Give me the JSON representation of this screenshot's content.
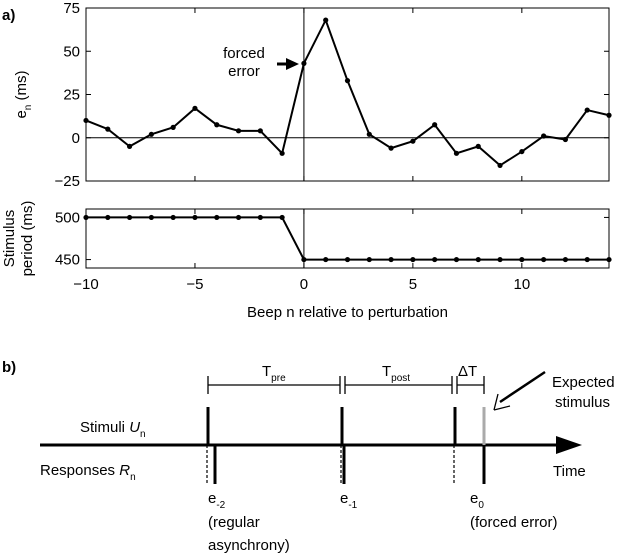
{
  "chart_data": [
    {
      "type": "line",
      "panel_label": "a)",
      "ylabel": {
        "base": "e",
        "sub": "n",
        "unit": "(ms)"
      },
      "annotation": [
        "forced",
        "error"
      ],
      "x": [
        -10,
        -9,
        -8,
        -7,
        -6,
        -5,
        -4,
        -3,
        -2,
        -1,
        0,
        1,
        2,
        3,
        4,
        5,
        6,
        7,
        8,
        9,
        10,
        11,
        12,
        13,
        14
      ],
      "values": [
        10,
        5,
        -5,
        2,
        6,
        17,
        7.5,
        4,
        4,
        -9,
        43,
        68,
        33,
        2,
        -6,
        -2,
        7.5,
        -9,
        -5,
        -16,
        -8,
        1,
        -1,
        16,
        13
      ],
      "color": "#000000",
      "xlim": [
        -10,
        14
      ],
      "ylim": [
        -25,
        75
      ],
      "yticks": [
        {
          "value": -25,
          "label": "−25"
        },
        0,
        25,
        50,
        75
      ],
      "hline": 0,
      "vline": 0,
      "sharex": true
    },
    {
      "type": "line",
      "ylabel": [
        "Stimulus",
        "period (ms)"
      ],
      "xlabel": "Beep n relative to perturbation",
      "x": [
        -10,
        -9,
        -8,
        -7,
        -6,
        -5,
        -4,
        -3,
        -2,
        -1,
        0,
        1,
        2,
        3,
        4,
        5,
        6,
        7,
        8,
        9,
        10,
        11,
        12,
        13,
        14
      ],
      "values": [
        500,
        500,
        500,
        500,
        500,
        500,
        500,
        500,
        500,
        500,
        450,
        450,
        450,
        450,
        450,
        450,
        450,
        450,
        450,
        450,
        450,
        450,
        450,
        450,
        450
      ],
      "color": "#000000",
      "xlim": [
        -10,
        14
      ],
      "ylim": [
        440,
        510
      ],
      "xticks": [
        {
          "value": -10,
          "label": "−10"
        },
        {
          "value": -5,
          "label": "−5"
        },
        0,
        5,
        10
      ],
      "yticks": [
        450,
        500
      ],
      "vline": 0
    }
  ],
  "diagram": {
    "label": "b)",
    "t_pre": {
      "base": "T",
      "sub": "pre"
    },
    "t_post": {
      "base": "T",
      "sub": "post"
    },
    "delta_t": "ΔT",
    "expected": [
      "Expected",
      "stimulus"
    ],
    "stimuli": {
      "text": "Stimuli",
      "symbol": "U",
      "sub": "n"
    },
    "responses": {
      "text": "Responses",
      "symbol": "R",
      "sub": "n"
    },
    "time": "Time",
    "errors": [
      {
        "base": "e",
        "sub": "-2",
        "note": [
          "(regular",
          "asynchrony)"
        ]
      },
      {
        "base": "e",
        "sub": "-1"
      },
      {
        "base": "e",
        "sub": "0",
        "note": [
          "(forced error)"
        ]
      }
    ]
  }
}
